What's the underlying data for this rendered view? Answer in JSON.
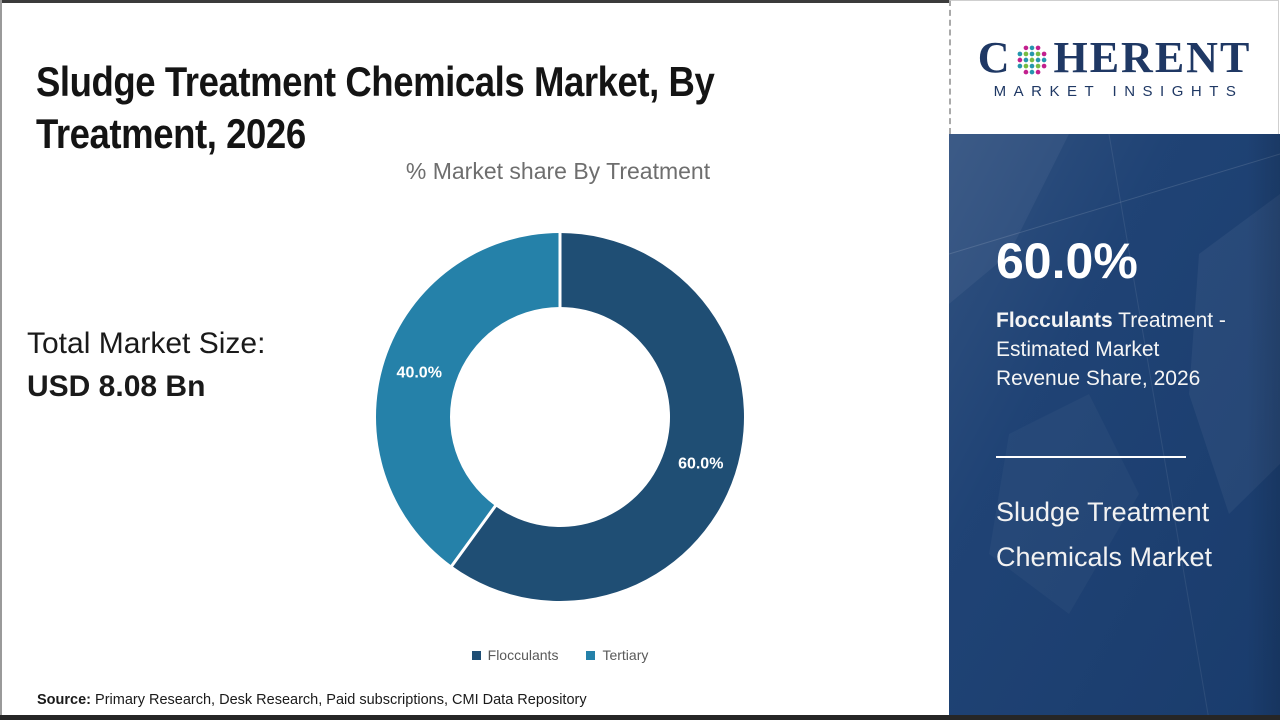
{
  "header": {
    "title_line1": "Sludge Treatment Chemicals Market, By",
    "title_line2": "Treatment, 2026"
  },
  "chart_data": {
    "type": "pie",
    "donut": true,
    "title": "% Market share By Treatment",
    "categories": [
      "Flocculants",
      "Tertiary"
    ],
    "values": [
      60.0,
      40.0
    ],
    "data_labels": [
      "60.0%",
      "40.0%"
    ],
    "colors": [
      "#1F4E74",
      "#2581A9"
    ],
    "start_angle_deg": 0,
    "clockwise": true,
    "legend_position": "bottom",
    "label_color": "#ffffff"
  },
  "left_panel": {
    "total_label": "Total Market Size:",
    "total_value": "USD 8.08 Bn"
  },
  "source": {
    "prefix": "Source:",
    "text": " Primary Research, Desk Research, Paid subscriptions, CMI Data Repository"
  },
  "logo": {
    "part1": "C",
    "part2": "HERENT",
    "subtitle": "MARKET INSIGHTS",
    "globe_colors": {
      "teal": "#2596AE",
      "green": "#76BC43",
      "magenta": "#C2208E"
    }
  },
  "sidebar": {
    "stat_value": "60.0%",
    "stat_desc_bold": "Flocculants",
    "stat_desc_rest": " Treatment - Estimated Market Revenue Share, 2026",
    "market_name": "Sludge Treatment Chemicals Market",
    "background": "#1B3F72"
  }
}
